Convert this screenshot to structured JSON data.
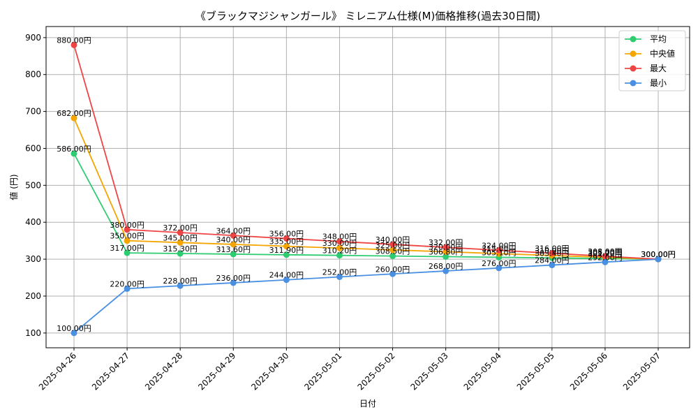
{
  "chart_data": {
    "type": "line",
    "title": "《ブラックマジシャンガール》 ミレニアム仕様(M)価格推移(過去30日間)",
    "xlabel": "日付",
    "ylabel": "値 (円)",
    "ylim": [
      60,
      930
    ],
    "yticks": [
      100,
      200,
      300,
      400,
      500,
      600,
      700,
      800,
      900
    ],
    "grid": true,
    "legend_position": "top-right",
    "categories": [
      "2025-04-26",
      "2025-04-27",
      "2025-04-28",
      "2025-04-29",
      "2025-04-30",
      "2025-05-01",
      "2025-05-02",
      "2025-05-03",
      "2025-05-04",
      "2025-05-05",
      "2025-05-06",
      "2025-05-07"
    ],
    "series": [
      {
        "name": "平均",
        "color": "#2ecc71",
        "values": [
          586,
          317,
          315.3,
          313.6,
          311.9,
          310.2,
          308.5,
          306.8,
          305.1,
          303.4,
          301.7,
          300
        ],
        "labels": [
          "586.00円",
          "317.00円",
          "315.30円",
          "313.60円",
          "311.90円",
          "310.20円",
          "308.50円",
          "306.80円",
          "305.10円",
          "303.40円",
          "301.70円",
          "300.00円"
        ]
      },
      {
        "name": "中央値",
        "color": "#f5a500",
        "values": [
          682,
          350,
          345,
          340,
          335,
          330,
          325,
          320,
          315,
          310,
          305,
          300
        ],
        "labels": [
          "682.00円",
          "350.00円",
          "345.00円",
          "340.00円",
          "335.00円",
          "330.00円",
          "325.00円",
          "320.00円",
          "315.00円",
          "310.00円",
          "305.00円",
          "300.00円"
        ]
      },
      {
        "name": "最大",
        "color": "#ef4444",
        "values": [
          880,
          380,
          372,
          364,
          356,
          348,
          340,
          332,
          324,
          316,
          308,
          300
        ],
        "labels": [
          "880.00円",
          "380.00円",
          "372.00円",
          "364.00円",
          "356.00円",
          "348.00円",
          "340.00円",
          "332.00円",
          "324.00円",
          "316.00円",
          "308.00円",
          "300.00円"
        ]
      },
      {
        "name": "最小",
        "color": "#4a90e2",
        "values": [
          100,
          220,
          228,
          236,
          244,
          252,
          260,
          268,
          276,
          284,
          292,
          300
        ],
        "labels": [
          "100.00円",
          "220.00円",
          "228.00円",
          "236.00円",
          "244.00円",
          "252.00円",
          "260.00円",
          "268.00円",
          "276.00円",
          "284.00円",
          "292.00円",
          "300.00円"
        ]
      }
    ]
  }
}
